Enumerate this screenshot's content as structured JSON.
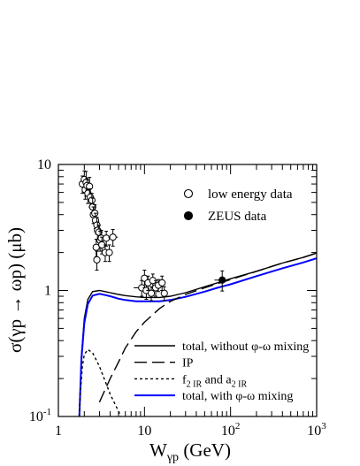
{
  "chart_data": {
    "type": "line",
    "xlabel": "W",
    "xlabel_sub": "γp",
    "xlabel_unit": " (GeV)",
    "ylabel": "σ(γp → ωp) (μb)",
    "x_scale": "log",
    "y_scale": "log",
    "xlim": [
      1,
      1000
    ],
    "ylim": [
      0.1,
      10
    ],
    "grid": false,
    "x_tick_labels": [
      {
        "value": 1,
        "base": "1",
        "exp": ""
      },
      {
        "value": 10,
        "base": "10",
        "exp": ""
      },
      {
        "value": 100,
        "base": "10",
        "exp": "2"
      },
      {
        "value": 1000,
        "base": "10",
        "exp": "3"
      }
    ],
    "y_tick_labels": [
      {
        "value": 0.1,
        "base": "10",
        "exp": "-1"
      },
      {
        "value": 1,
        "base": "1",
        "exp": ""
      },
      {
        "value": 10,
        "base": "10",
        "exp": ""
      }
    ],
    "legend_top": [
      {
        "label": "low energy data",
        "marker": "open-circle"
      },
      {
        "label": "ZEUS data",
        "marker": "filled-circle"
      }
    ],
    "legend_bottom": [
      {
        "label": "total, without φ-ω mixing",
        "style": "solid",
        "color": "#000000"
      },
      {
        "label": "IP",
        "style": "long-dash",
        "color": "#000000"
      },
      {
        "label": "f",
        "sub1": "2 IR",
        "mid": " and a",
        "sub2": "2 IR",
        "style": "short-dash",
        "color": "#000000"
      },
      {
        "label": "total, with φ-ω mixing",
        "style": "solid",
        "color": "#0000ff"
      }
    ],
    "series": [
      {
        "name": "total, without φ-ω mixing",
        "color": "#000000",
        "style": "solid",
        "x": [
          1.75,
          1.85,
          2.0,
          2.2,
          2.5,
          3.0,
          3.5,
          4.0,
          5.0,
          6.0,
          8.0,
          10,
          15,
          20,
          30,
          50,
          70,
          100,
          200,
          400,
          700,
          1000
        ],
        "y": [
          0.1,
          0.3,
          0.6,
          0.85,
          0.98,
          1.0,
          0.98,
          0.96,
          0.93,
          0.91,
          0.89,
          0.88,
          0.88,
          0.9,
          0.96,
          1.07,
          1.15,
          1.24,
          1.42,
          1.65,
          1.83,
          1.98
        ]
      },
      {
        "name": "total, with φ-ω mixing",
        "color": "#0000ff",
        "style": "solid",
        "x": [
          1.75,
          1.85,
          2.0,
          2.2,
          2.5,
          3.0,
          3.5,
          4.0,
          5.0,
          6.0,
          8.0,
          10,
          15,
          20,
          30,
          50,
          70,
          100,
          200,
          400,
          700,
          1000
        ],
        "y": [
          0.1,
          0.28,
          0.55,
          0.78,
          0.91,
          0.94,
          0.92,
          0.9,
          0.86,
          0.84,
          0.82,
          0.82,
          0.82,
          0.84,
          0.89,
          0.98,
          1.05,
          1.12,
          1.3,
          1.5,
          1.67,
          1.8
        ]
      },
      {
        "name": "IP",
        "color": "#000000",
        "style": "long-dash",
        "x": [
          3.0,
          4.0,
          5.0,
          6.0,
          8.0,
          10,
          15,
          20,
          30,
          50,
          70,
          100,
          200,
          400,
          700,
          1000
        ],
        "y": [
          0.13,
          0.2,
          0.27,
          0.35,
          0.47,
          0.56,
          0.72,
          0.82,
          0.93,
          1.05,
          1.13,
          1.22,
          1.42,
          1.65,
          1.83,
          1.98
        ]
      },
      {
        "name": "f2 IR and a2 IR",
        "color": "#000000",
        "style": "short-dash",
        "x": [
          1.75,
          1.8,
          1.9,
          2.0,
          2.2,
          2.5,
          3.0,
          3.5,
          4.0,
          5.0,
          6.0
        ],
        "y": [
          0.1,
          0.15,
          0.25,
          0.31,
          0.34,
          0.32,
          0.25,
          0.19,
          0.15,
          0.11,
          0.085
        ]
      }
    ],
    "points_low": [
      {
        "x": 1.9,
        "y": 7.0,
        "err": 1.1
      },
      {
        "x": 2.0,
        "y": 7.6,
        "err": 1.3
      },
      {
        "x": 2.05,
        "y": 6.3,
        "err": 1.0
      },
      {
        "x": 2.1,
        "y": 7.2,
        "err": 1.6
      },
      {
        "x": 2.15,
        "y": 6.8,
        "err": 0.9
      },
      {
        "x": 2.2,
        "y": 5.9,
        "err": 1.0
      },
      {
        "x": 2.3,
        "y": 6.7,
        "err": 1.2
      },
      {
        "x": 2.35,
        "y": 5.5,
        "err": 0.9
      },
      {
        "x": 2.45,
        "y": 5.2,
        "err": 0.7
      },
      {
        "x": 2.5,
        "y": 4.6,
        "err": 0.8
      },
      {
        "x": 2.55,
        "y": 4.0,
        "err": 0.6
      },
      {
        "x": 2.65,
        "y": 4.1,
        "err": 0.7
      },
      {
        "x": 2.7,
        "y": 3.6,
        "err": 0.5
      },
      {
        "x": 2.8,
        "y": 3.3,
        "err": 0.5
      },
      {
        "x": 2.85,
        "y": 3.0,
        "err": 0.5
      },
      {
        "x": 2.95,
        "y": 2.9,
        "err": 0.4
      },
      {
        "x": 3.05,
        "y": 2.5,
        "err": 0.45
      },
      {
        "x": 3.15,
        "y": 2.6,
        "err": 0.4
      },
      {
        "x": 2.75,
        "y": 2.2,
        "err": 0.35
      },
      {
        "x": 3.2,
        "y": 2.3,
        "err": 0.35
      },
      {
        "x": 3.5,
        "y": 2.0,
        "err": 0.3
      },
      {
        "x": 3.6,
        "y": 2.6,
        "err": 0.35
      },
      {
        "x": 3.9,
        "y": 2.0,
        "err": 0.3
      },
      {
        "x": 2.8,
        "y": 1.75,
        "err": 0.3
      },
      {
        "x": 4.3,
        "y": 2.65,
        "err": 0.4,
        "xerr": [
          3.8,
          4.9
        ]
      },
      {
        "x": 9.3,
        "y": 1.05,
        "err": 0.15,
        "xerr": [
          7.5,
          10.5
        ]
      },
      {
        "x": 10.0,
        "y": 1.25,
        "err": 0.2
      },
      {
        "x": 10.5,
        "y": 1.0,
        "err": 0.15
      },
      {
        "x": 11.0,
        "y": 1.15,
        "err": 0.15
      },
      {
        "x": 12.0,
        "y": 0.95,
        "err": 0.12
      },
      {
        "x": 12.5,
        "y": 1.2,
        "err": 0.15
      },
      {
        "x": 13.5,
        "y": 1.05,
        "err": 0.15
      },
      {
        "x": 14.5,
        "y": 1.1,
        "err": 0.12
      },
      {
        "x": 16.0,
        "y": 1.15,
        "err": 0.15
      },
      {
        "x": 17.0,
        "y": 0.95,
        "err": 0.12
      }
    ],
    "points_zeus": [
      {
        "x": 80,
        "y": 1.21,
        "err": 0.22,
        "xerr": [
          65,
          95
        ]
      }
    ]
  }
}
